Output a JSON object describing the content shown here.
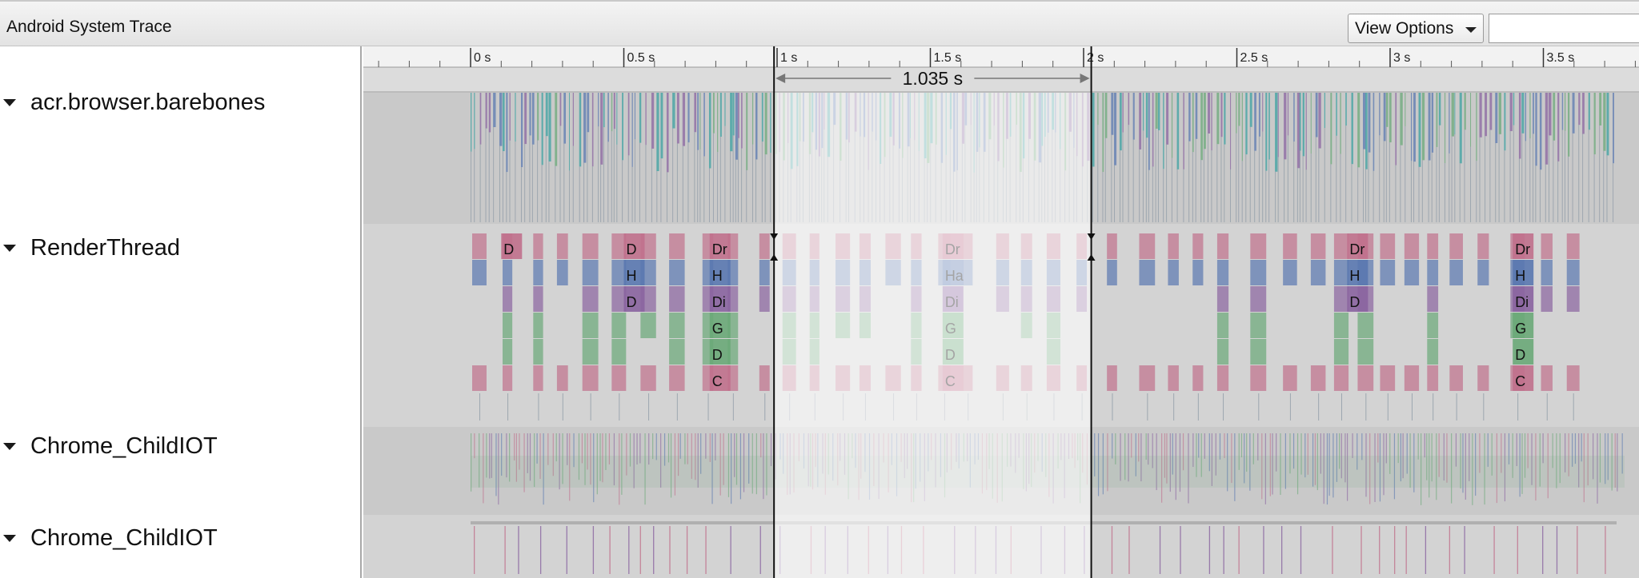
{
  "app": {
    "title": "Android System Trace"
  },
  "toolbar": {
    "view_options_label": "View Options",
    "filter_value": "",
    "filter_placeholder": ""
  },
  "ruler": {
    "ticks": [
      "0 s",
      "0.5 s",
      "1 s",
      "1.5 s",
      "2 s",
      "2.5 s",
      "3 s",
      "3.5 s"
    ]
  },
  "selection": {
    "duration_label": "1.035 s",
    "start_s": 0.99,
    "end_s": 2.025
  },
  "tracks": [
    {
      "name": "acr.browser.barebones",
      "expanded": true
    },
    {
      "name": "RenderThread",
      "expanded": true
    },
    {
      "name": "Chrome_ChildIOT",
      "expanded": true
    },
    {
      "name": "Chrome_ChildIOT",
      "expanded": true
    }
  ],
  "render_slices": [
    {
      "at_s": 0.1,
      "labels": [
        "D"
      ]
    },
    {
      "at_s": 0.5,
      "labels": [
        "D",
        "H",
        "D"
      ]
    },
    {
      "at_s": 0.78,
      "labels": [
        "Dr",
        "H",
        "Di",
        "G",
        "D",
        "C"
      ]
    },
    {
      "at_s": 1.54,
      "labels": [
        "Dr",
        "Ha",
        "Di",
        "G",
        "D",
        "C"
      ]
    },
    {
      "at_s": 2.86,
      "labels": [
        "Dr",
        "H",
        "D"
      ]
    },
    {
      "at_s": 3.4,
      "labels": [
        "Dr",
        "H",
        "Di",
        "G",
        "D",
        "C"
      ]
    }
  ],
  "colors": {
    "track_bg": "#c9c9c9",
    "track_bg_alt": "#d3d3d3",
    "selection_bg": "#ffffff",
    "purple": "#8a64a0",
    "blue": "#5a78b0",
    "green": "#6aa878",
    "pink": "#c0708c",
    "teal": "#3aa0a0"
  }
}
